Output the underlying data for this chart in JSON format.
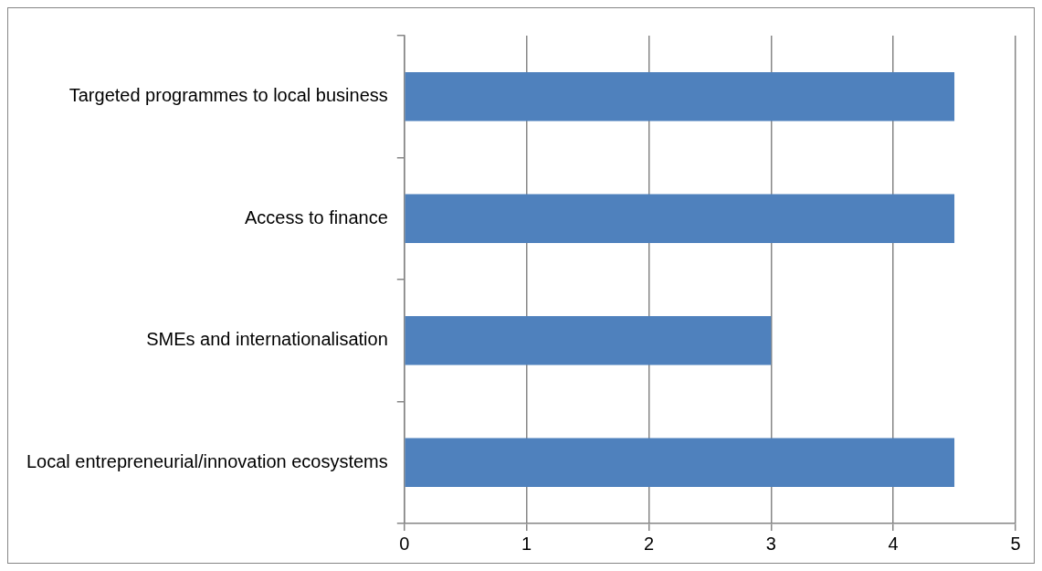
{
  "chart_data": {
    "type": "bar",
    "orientation": "horizontal",
    "categories": [
      "Targeted programmes to local business",
      "Access to finance",
      "SMEs and internationalisation",
      "Local entrepreneurial/innovation ecosystems"
    ],
    "values": [
      4.5,
      4.5,
      3,
      4.5
    ],
    "color": "#4f81bd",
    "xlim": [
      0,
      5
    ],
    "xticks": [
      0,
      1,
      2,
      3,
      4,
      5
    ],
    "grid": "x",
    "legend": false
  }
}
